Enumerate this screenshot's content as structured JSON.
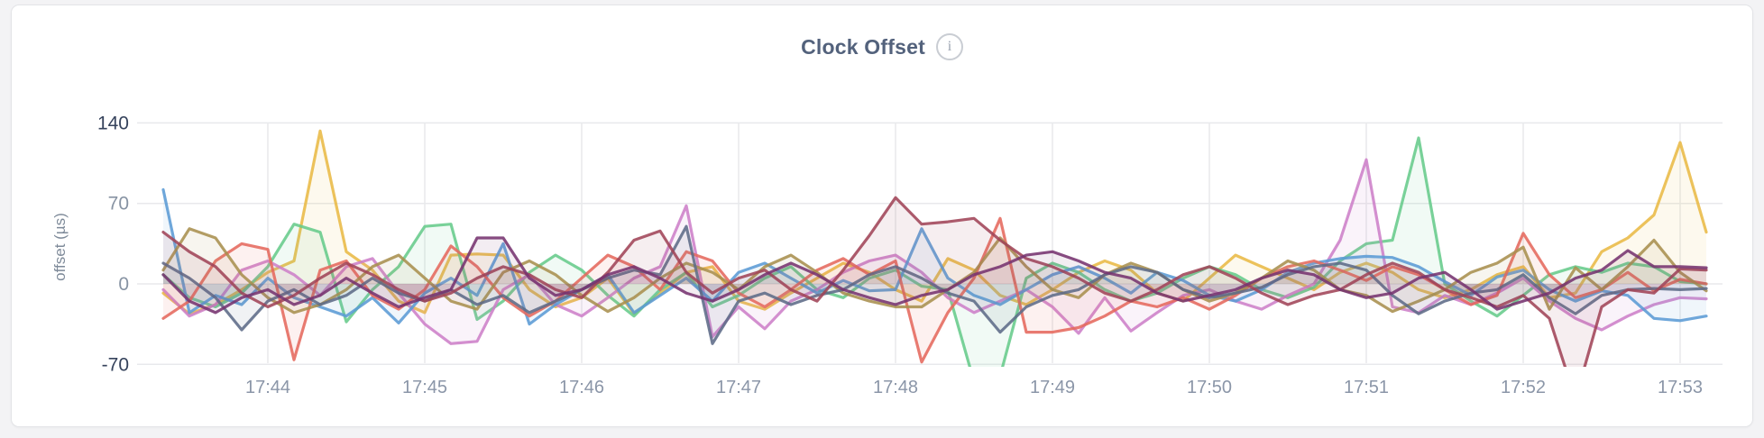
{
  "page": {
    "background": "#f3f3f5",
    "panel_background": "#ffffff",
    "panel_border": "#e3e4e7"
  },
  "header": {
    "title": "Clock Offset",
    "info_icon_glyph": "i"
  },
  "axes": {
    "y_title": "offset (µs)",
    "y_ticks": [
      {
        "label": "140",
        "value": 140,
        "color": "#36435c"
      },
      {
        "label": "70",
        "value": 70,
        "color": "#8793a3"
      },
      {
        "label": "0",
        "value": 0,
        "color": "#8793a3"
      },
      {
        "label": "-70",
        "value": -70,
        "color": "#36435c"
      }
    ],
    "x_ticks": [
      "17:44",
      "17:45",
      "17:46",
      "17:47",
      "17:48",
      "17:49",
      "17:50",
      "17:51",
      "17:52",
      "17:53"
    ],
    "x_tick_color": "#8b96a8",
    "grid_color": "#e8e9ec"
  },
  "chart_data": {
    "type": "line",
    "title": "Clock Offset",
    "ylabel": "offset (µs)",
    "ylim": [
      -70,
      140
    ],
    "y_ticks": [
      140,
      70,
      0,
      -70
    ],
    "x_ticks": [
      "17:44",
      "17:45",
      "17:46",
      "17:47",
      "17:48",
      "17:49",
      "17:50",
      "17:51",
      "17:52",
      "17:53"
    ],
    "x_start": "17:43:20",
    "x_interval_seconds": 10,
    "grid": true,
    "legend": "none",
    "baseline": 0,
    "fill_opacity": 0.09,
    "line_opacity": 0.88,
    "series": [
      {
        "name": "gold",
        "color": "#e9ba45",
        "values": [
          -8,
          -26,
          -18,
          -5,
          10,
          20,
          133,
          28,
          12,
          -15,
          -25,
          25,
          26,
          25,
          -5,
          -20,
          -12,
          5,
          -26,
          -8,
          10,
          15,
          -15,
          -22,
          -8,
          5,
          18,
          10,
          -5,
          -15,
          22,
          12,
          -10,
          -18,
          -5,
          10,
          20,
          12,
          -8,
          -15,
          5,
          25,
          15,
          5,
          -5,
          10,
          18,
          10,
          -5,
          -12,
          -5,
          8,
          15,
          -12,
          -8,
          28,
          40,
          60,
          123,
          45
        ]
      },
      {
        "name": "green",
        "color": "#67cb8b",
        "values": [
          8,
          -12,
          -20,
          -8,
          15,
          52,
          45,
          -33,
          -5,
          15,
          50,
          52,
          -31,
          -15,
          10,
          25,
          12,
          -10,
          -28,
          -5,
          10,
          -20,
          -10,
          5,
          15,
          -5,
          -12,
          5,
          12,
          -2,
          -5,
          -85,
          -80,
          5,
          18,
          10,
          -5,
          -15,
          -8,
          5,
          15,
          8,
          -5,
          -12,
          -3,
          20,
          35,
          38,
          127,
          0,
          -15,
          -28,
          -10,
          8,
          15,
          10,
          18,
          15,
          2,
          0
        ]
      },
      {
        "name": "orchid",
        "color": "#cd7fc8",
        "values": [
          -5,
          -28,
          -18,
          12,
          20,
          8,
          -10,
          15,
          22,
          -8,
          -35,
          -52,
          -50,
          -5,
          8,
          -18,
          -28,
          -12,
          5,
          15,
          68,
          -46,
          -20,
          -39,
          -15,
          -5,
          10,
          20,
          25,
          10,
          -12,
          -25,
          -15,
          -5,
          -20,
          -43,
          -12,
          -41,
          -25,
          -10,
          -5,
          -15,
          -22,
          -10,
          0,
          38,
          108,
          -20,
          -25,
          -10,
          -18,
          -8,
          5,
          -15,
          -30,
          -40,
          -28,
          -18,
          -12,
          -13
        ]
      },
      {
        "name": "blue",
        "color": "#5b9bd5",
        "values": [
          82,
          -25,
          -10,
          -18,
          5,
          -12,
          -20,
          -28,
          -12,
          -34,
          -8,
          5,
          -10,
          35,
          -35,
          -18,
          -5,
          8,
          -25,
          -10,
          5,
          -15,
          10,
          18,
          5,
          -8,
          3,
          -6,
          -5,
          48,
          5,
          -10,
          -18,
          -5,
          8,
          15,
          5,
          -8,
          10,
          3,
          -10,
          -15,
          -5,
          10,
          18,
          22,
          24,
          23,
          15,
          2,
          -10,
          6,
          12,
          -5,
          -15,
          -6,
          -10,
          -30,
          -32,
          -28
        ]
      },
      {
        "name": "red",
        "color": "#e5695d",
        "values": [
          -30,
          -15,
          20,
          35,
          30,
          -66,
          12,
          20,
          -10,
          -22,
          -5,
          33,
          15,
          -12,
          -28,
          -15,
          5,
          25,
          15,
          -5,
          28,
          20,
          -8,
          -20,
          -5,
          12,
          22,
          8,
          20,
          -68,
          -25,
          5,
          57,
          -42,
          -42,
          -38,
          -28,
          -15,
          -20,
          -12,
          -22,
          -10,
          5,
          15,
          20,
          12,
          3,
          15,
          8,
          -5,
          -18,
          -10,
          44,
          8,
          -12,
          -5,
          10,
          -6,
          4,
          0
        ]
      },
      {
        "name": "khaki",
        "color": "#a8904f",
        "values": [
          12,
          48,
          40,
          8,
          -12,
          -25,
          -18,
          -5,
          15,
          25,
          5,
          -15,
          -22,
          10,
          20,
          8,
          -10,
          -24,
          -12,
          5,
          18,
          10,
          -5,
          15,
          25,
          10,
          -8,
          -15,
          -20,
          -20,
          -5,
          10,
          40,
          15,
          -5,
          -12,
          8,
          18,
          10,
          -5,
          -15,
          -8,
          5,
          20,
          12,
          -5,
          -10,
          -24,
          -15,
          -5,
          10,
          18,
          32,
          -22,
          14,
          -5,
          15,
          38,
          10,
          -6
        ]
      },
      {
        "name": "slate",
        "color": "#5d6b87",
        "values": [
          18,
          5,
          -12,
          -40,
          -15,
          -5,
          -18,
          -10,
          5,
          -8,
          -15,
          -5,
          -18,
          -10,
          -25,
          -15,
          -5,
          5,
          12,
          8,
          50,
          -52,
          -15,
          -8,
          -18,
          -10,
          -5,
          8,
          15,
          5,
          -8,
          -15,
          -42,
          -20,
          -10,
          -5,
          8,
          15,
          10,
          -5,
          -12,
          -8,
          -3,
          8,
          15,
          18,
          12,
          -10,
          -26,
          -15,
          -8,
          -5,
          8,
          -12,
          -26,
          -10,
          -5,
          -4,
          -5,
          -4
        ]
      },
      {
        "name": "maroon",
        "color": "#a04458",
        "values": [
          45,
          28,
          15,
          -8,
          -20,
          -10,
          5,
          18,
          8,
          -5,
          -15,
          -8,
          5,
          15,
          8,
          -5,
          -12,
          10,
          38,
          46,
          10,
          -8,
          5,
          12,
          -5,
          -15,
          12,
          42,
          75,
          52,
          54,
          57,
          38,
          22,
          15,
          5,
          -8,
          -15,
          -5,
          8,
          15,
          5,
          -8,
          -18,
          -10,
          -5,
          8,
          18,
          10,
          -5,
          -12,
          -20,
          -10,
          -30,
          -100,
          -20,
          -5,
          -8,
          13,
          12
        ]
      },
      {
        "name": "purple",
        "color": "#76336f",
        "values": [
          8,
          -15,
          -25,
          -12,
          -5,
          -18,
          -10,
          5,
          -8,
          -20,
          -12,
          -5,
          40,
          40,
          5,
          -10,
          -5,
          8,
          15,
          5,
          -8,
          -15,
          -5,
          8,
          18,
          8,
          -5,
          -12,
          -18,
          -10,
          -5,
          8,
          15,
          25,
          28,
          20,
          10,
          5,
          -8,
          -15,
          -10,
          -5,
          5,
          12,
          8,
          -5,
          -12,
          -8,
          5,
          10,
          -5,
          -22,
          -15,
          -8,
          5,
          12,
          29,
          15,
          15,
          14
        ]
      }
    ]
  }
}
